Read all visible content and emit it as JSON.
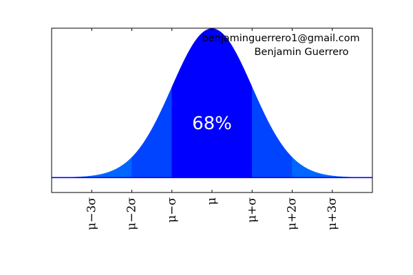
{
  "chart_data": {
    "type": "area",
    "distribution": "normal",
    "x_range": [
      -4,
      4
    ],
    "y_range": [
      -0.04,
      0.4
    ],
    "x_ticks": [
      {
        "value": -3,
        "label": "μ−3σ"
      },
      {
        "value": -2,
        "label": "μ−2σ"
      },
      {
        "value": -1,
        "label": "μ−σ"
      },
      {
        "value": 0,
        "label": "μ"
      },
      {
        "value": 1,
        "label": "μ+σ"
      },
      {
        "value": 2,
        "label": "μ+2σ"
      },
      {
        "value": 3,
        "label": "μ+3σ"
      }
    ],
    "tick_label_rotation": "vertical",
    "bands": [
      {
        "from": -4,
        "to": -2,
        "color": "#0066ff"
      },
      {
        "from": -2,
        "to": -1,
        "color": "#0044ff"
      },
      {
        "from": -1,
        "to": 1,
        "color": "#0000ff"
      },
      {
        "from": 1,
        "to": 2,
        "color": "#0044ff"
      },
      {
        "from": 2,
        "to": 4,
        "color": "#0066ff"
      }
    ],
    "baseline_color": "#0000ff",
    "center_label": "68%",
    "annotations": [
      "benjaminguerrero1@gmail.com",
      "Benjamin Guerrero"
    ],
    "grid": false,
    "legend": "none",
    "y_ticks": "none"
  }
}
